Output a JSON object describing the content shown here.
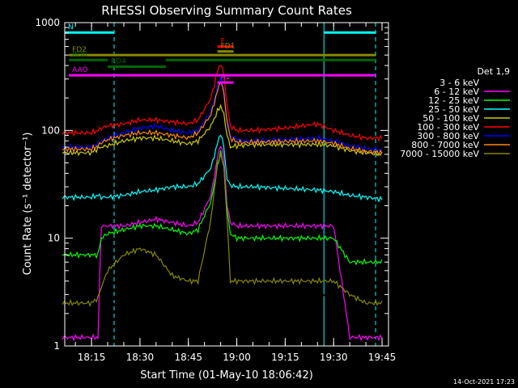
{
  "chart_data": {
    "type": "line",
    "title": "RHESSI Observing Summary Count Rates",
    "xlabel": "Start Time (01-May-10 18:06:42)",
    "ylabel": "Count Rate (s⁻¹ detector⁻¹)",
    "legend_title": "Det 1,9",
    "legend_placement": "right",
    "timestamp": "14-Oct-2021 17:23",
    "y_scale": "log",
    "ylim": [
      1,
      1000
    ],
    "xlim": [
      "18:06:42",
      "19:47:00"
    ],
    "x_ticks": [
      "18:15",
      "18:30",
      "18:45",
      "19:00",
      "19:15",
      "19:30",
      "19:45"
    ],
    "y_ticks": [
      "1",
      "10",
      "100",
      "1000"
    ],
    "x": [
      "18:06",
      "18:15",
      "18:17",
      "18:18",
      "18:20",
      "18:25",
      "18:30",
      "18:35",
      "18:40",
      "18:45",
      "18:48",
      "18:52",
      "18:54",
      "18:55",
      "18:56",
      "18:57",
      "18:58",
      "19:00",
      "19:02",
      "19:05",
      "19:15",
      "19:25",
      "19:30",
      "19:35",
      "19:40",
      "19:45"
    ],
    "series": [
      {
        "name": "3 - 6 keV",
        "color": "#000000",
        "values": [
          1.2,
          1.2,
          1.2,
          2.5,
          2.8,
          2.8,
          3,
          3,
          3,
          3,
          4,
          15,
          70,
          130,
          60,
          20,
          4,
          3,
          3,
          3,
          3,
          3,
          3,
          1.2,
          1.2,
          1.2
        ]
      },
      {
        "name": "6 - 12 keV",
        "color": "#ff00ff",
        "values": [
          1.2,
          1.2,
          1.2,
          13,
          13,
          13,
          14,
          15,
          14,
          13,
          14,
          25,
          55,
          75,
          55,
          20,
          14,
          13,
          13,
          13,
          13,
          13,
          13,
          1.2,
          1.2,
          1.2
        ]
      },
      {
        "name": "12 - 25 keV",
        "color": "#00ff00",
        "values": [
          7,
          7,
          7,
          10,
          11,
          12,
          13,
          13,
          12,
          11,
          12,
          22,
          45,
          65,
          45,
          18,
          11,
          10,
          10,
          10,
          10,
          10,
          10,
          6,
          6,
          6
        ]
      },
      {
        "name": "25 - 50 keV",
        "color": "#00ffff",
        "values": [
          24,
          24,
          25,
          24,
          24,
          25,
          27,
          28,
          30,
          30,
          32,
          45,
          75,
          95,
          70,
          35,
          31,
          30,
          30,
          30,
          29,
          28,
          27,
          25,
          24,
          23
        ]
      },
      {
        "name": "50 - 100 keV",
        "color": "#cccc00",
        "values": [
          62,
          62,
          68,
          70,
          72,
          80,
          85,
          85,
          80,
          75,
          80,
          110,
          150,
          170,
          140,
          90,
          70,
          72,
          73,
          74,
          74,
          74,
          72,
          65,
          62,
          60
        ]
      },
      {
        "name": "100 - 300 keV",
        "color": "#ff0000",
        "values": [
          95,
          95,
          100,
          105,
          110,
          115,
          125,
          125,
          120,
          115,
          125,
          200,
          350,
          420,
          330,
          170,
          110,
          100,
          100,
          100,
          105,
          115,
          100,
          90,
          85,
          85
        ]
      },
      {
        "name": "300 - 800 keV",
        "color": "#0000ff",
        "values": [
          70,
          70,
          75,
          80,
          85,
          95,
          105,
          110,
          100,
          95,
          100,
          150,
          250,
          310,
          240,
          130,
          90,
          82,
          80,
          80,
          82,
          85,
          80,
          72,
          68,
          65
        ]
      },
      {
        "name": "800 - 7000 keV",
        "color": "#ff8800",
        "values": [
          67,
          67,
          72,
          77,
          82,
          90,
          95,
          95,
          90,
          85,
          95,
          140,
          230,
          290,
          220,
          120,
          85,
          78,
          77,
          78,
          79,
          80,
          76,
          68,
          64,
          62
        ]
      },
      {
        "name": "7000 - 15000 keV",
        "color": "#888800",
        "values": [
          2.5,
          2.5,
          2.8,
          3.5,
          5,
          7,
          8,
          7,
          4.5,
          4,
          4,
          15,
          50,
          60,
          45,
          15,
          4,
          4,
          4,
          4,
          4,
          4,
          4,
          3,
          2.5,
          2.5
        ]
      }
    ],
    "vertical_lines": [
      {
        "time": "18:06:42",
        "color": "#00ffff",
        "style": "solid"
      },
      {
        "time": "18:22:00",
        "color": "#00ffff",
        "style": "dashed"
      },
      {
        "time": "19:27:00",
        "color": "#00ffff",
        "style": "solid"
      },
      {
        "time": "19:43:00",
        "color": "#00ffff",
        "style": "dashed"
      }
    ],
    "annotations": [
      {
        "label": "N",
        "color": "#00ffff",
        "bars": [
          [
            "18:06:42",
            "18:22:00"
          ],
          [
            "19:27:00",
            "19:43:00"
          ]
        ],
        "y": 810
      },
      {
        "label": "F",
        "color": "#ff0000",
        "bars": [
          [
            "18:54:00",
            "18:59:00"
          ]
        ],
        "y": 600
      },
      {
        "label": "FD1",
        "color": "#888800",
        "bars": [
          [
            "18:54:00",
            "18:59:00"
          ]
        ],
        "y": 540
      },
      {
        "label": "FD2",
        "color": "#888800",
        "bars": [
          [
            "18:08:00",
            "19:43:00"
          ]
        ],
        "y": 500
      },
      {
        "label": "RD0",
        "color": "#006600",
        "bars": [
          [
            "18:08:00",
            "18:20:00"
          ],
          [
            "18:38:00",
            "19:43:00"
          ]
        ],
        "y": 450
      },
      {
        "label": "RD4",
        "color": "#006600",
        "bars": [
          [
            "18:20:00",
            "18:38:00"
          ]
        ],
        "y": 390
      },
      {
        "label": "AAO",
        "color": "#ff00ff",
        "bars": [
          [
            "18:08:00",
            "19:43:00"
          ]
        ],
        "y": 325
      },
      {
        "label": "A1",
        "color": "#ff00ff",
        "bars": [
          [
            "18:54:00",
            "18:59:00"
          ]
        ],
        "y": 278
      }
    ]
  }
}
